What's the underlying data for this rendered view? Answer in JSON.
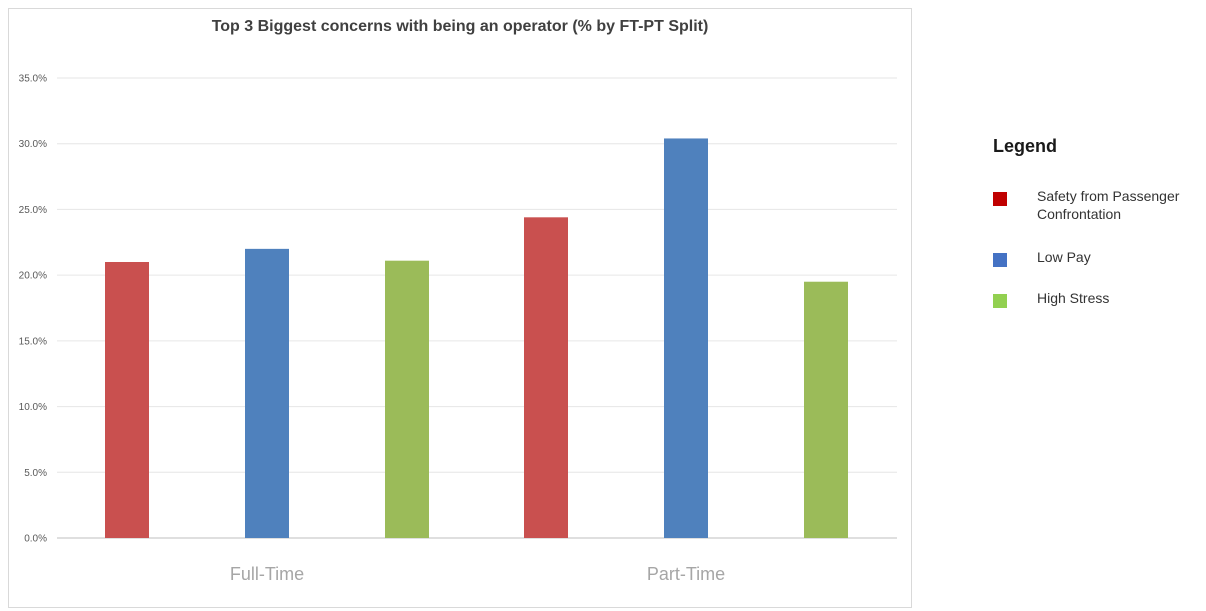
{
  "chart_data": {
    "type": "bar",
    "title": "Top 3 Biggest concerns with being an operator (% by FT-PT Split)",
    "categories": [
      "Full-Time",
      "Part-Time"
    ],
    "series": [
      {
        "name": "Safety from Passenger Confrontation",
        "color": "#c9504f",
        "values": [
          21.0,
          24.4
        ]
      },
      {
        "name": "Low Pay",
        "color": "#4f81bd",
        "values": [
          22.0,
          30.4
        ]
      },
      {
        "name": "High Stress",
        "color": "#9bbb59",
        "values": [
          21.1,
          19.5
        ]
      }
    ],
    "y_ticks": [
      "0.0%",
      "5.0%",
      "10.0%",
      "15.0%",
      "20.0%",
      "25.0%",
      "30.0%",
      "35.0%"
    ],
    "ylim": [
      0,
      35
    ],
    "grid": true,
    "legend_position": "right"
  },
  "legend": {
    "title": "Legend",
    "items": [
      {
        "label": "Safety from Passenger Confrontation",
        "color": "#c00000"
      },
      {
        "label": "Low Pay",
        "color": "#4472c4"
      },
      {
        "label": "High Stress",
        "color": "#92d050"
      }
    ]
  }
}
